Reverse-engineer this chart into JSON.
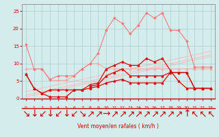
{
  "x": [
    0,
    1,
    2,
    3,
    4,
    5,
    6,
    7,
    8,
    9,
    10,
    11,
    12,
    13,
    14,
    15,
    16,
    17,
    18,
    19,
    20,
    21,
    22,
    23
  ],
  "line_pink_flat": [
    8.5,
    8.5,
    8.5,
    5.2,
    5.2,
    5.2,
    6.5,
    8.5,
    10.0,
    10.0,
    8.5,
    8.5,
    8.5,
    8.5,
    8.5,
    8.5,
    8.5,
    8.5,
    8.5,
    8.5,
    8.5,
    8.5,
    8.5,
    8.5
  ],
  "line_pink_tall": [
    15.5,
    8.5,
    8.5,
    5.5,
    6.5,
    6.5,
    6.5,
    8.5,
    10.0,
    13.0,
    19.5,
    23.0,
    21.5,
    18.5,
    21.0,
    24.5,
    23.0,
    24.5,
    19.5,
    19.5,
    16.5,
    9.0,
    9.0,
    9.0
  ],
  "diag1": [
    0.5,
    1.0,
    1.5,
    2.0,
    2.5,
    3.0,
    3.5,
    4.0,
    4.5,
    5.0,
    5.5,
    6.0,
    6.5,
    7.0,
    7.5,
    8.0,
    8.5,
    9.0,
    9.5,
    10.0,
    10.5,
    11.0,
    11.5,
    12.0
  ],
  "diag2": [
    1.0,
    1.5,
    2.0,
    2.5,
    3.0,
    3.5,
    4.0,
    4.5,
    5.0,
    5.5,
    6.0,
    6.5,
    7.0,
    7.5,
    8.0,
    8.5,
    9.0,
    9.5,
    10.0,
    10.5,
    11.0,
    11.5,
    12.0,
    12.5
  ],
  "diag3": [
    2.0,
    2.5,
    3.0,
    3.5,
    4.0,
    4.5,
    5.0,
    5.5,
    6.0,
    6.5,
    7.0,
    7.5,
    8.0,
    8.5,
    9.0,
    9.5,
    10.0,
    10.5,
    11.0,
    11.5,
    12.0,
    12.5,
    13.0,
    13.5
  ],
  "line_red1": [
    7.0,
    3.0,
    1.5,
    2.5,
    2.5,
    2.5,
    2.5,
    2.5,
    4.0,
    4.5,
    8.5,
    9.5,
    10.5,
    9.5,
    9.5,
    11.5,
    10.5,
    11.5,
    8.0,
    5.0,
    3.0,
    3.0,
    3.0,
    3.0
  ],
  "line_red2": [
    7.0,
    3.0,
    1.5,
    0.5,
    0.5,
    0.5,
    2.5,
    2.5,
    3.0,
    3.5,
    4.5,
    5.0,
    5.5,
    4.5,
    4.5,
    4.5,
    4.5,
    4.5,
    7.5,
    7.5,
    7.5,
    3.0,
    3.0,
    3.0
  ],
  "line_red3": [
    null,
    null,
    null,
    null,
    null,
    null,
    null,
    null,
    3.5,
    4.0,
    6.5,
    7.5,
    8.5,
    6.5,
    6.5,
    6.5,
    6.5,
    6.5,
    7.5,
    7.5,
    7.5,
    3.0,
    3.0,
    3.0
  ],
  "wind_arrows": [
    "↘",
    "↓",
    "↙",
    "↓",
    "↙",
    "↓",
    "↙",
    "↘",
    "↗",
    "↗",
    "→",
    "↗",
    "↗",
    "↗",
    "↗",
    "↗",
    "↗",
    "↗",
    "↗",
    "↗",
    "↑",
    "↖",
    "↖",
    "↖"
  ],
  "bg_color": "#d4ecec",
  "grid_color": "#aacccc",
  "line_pink_color": "#ffaaaa",
  "line_pink_tall_color": "#ff7777",
  "line_red_color": "#dd0000",
  "diag_color": "#ffbbbb",
  "xlabel": "Vent moyen/en rafales ( km/h )",
  "ylim": [
    0,
    27
  ],
  "xlim": [
    -0.5,
    23.5
  ],
  "yticks": [
    0,
    5,
    10,
    15,
    20,
    25
  ],
  "xticks": [
    0,
    1,
    2,
    3,
    4,
    5,
    6,
    7,
    8,
    9,
    10,
    11,
    12,
    13,
    14,
    15,
    16,
    17,
    18,
    19,
    20,
    21,
    22,
    23
  ]
}
